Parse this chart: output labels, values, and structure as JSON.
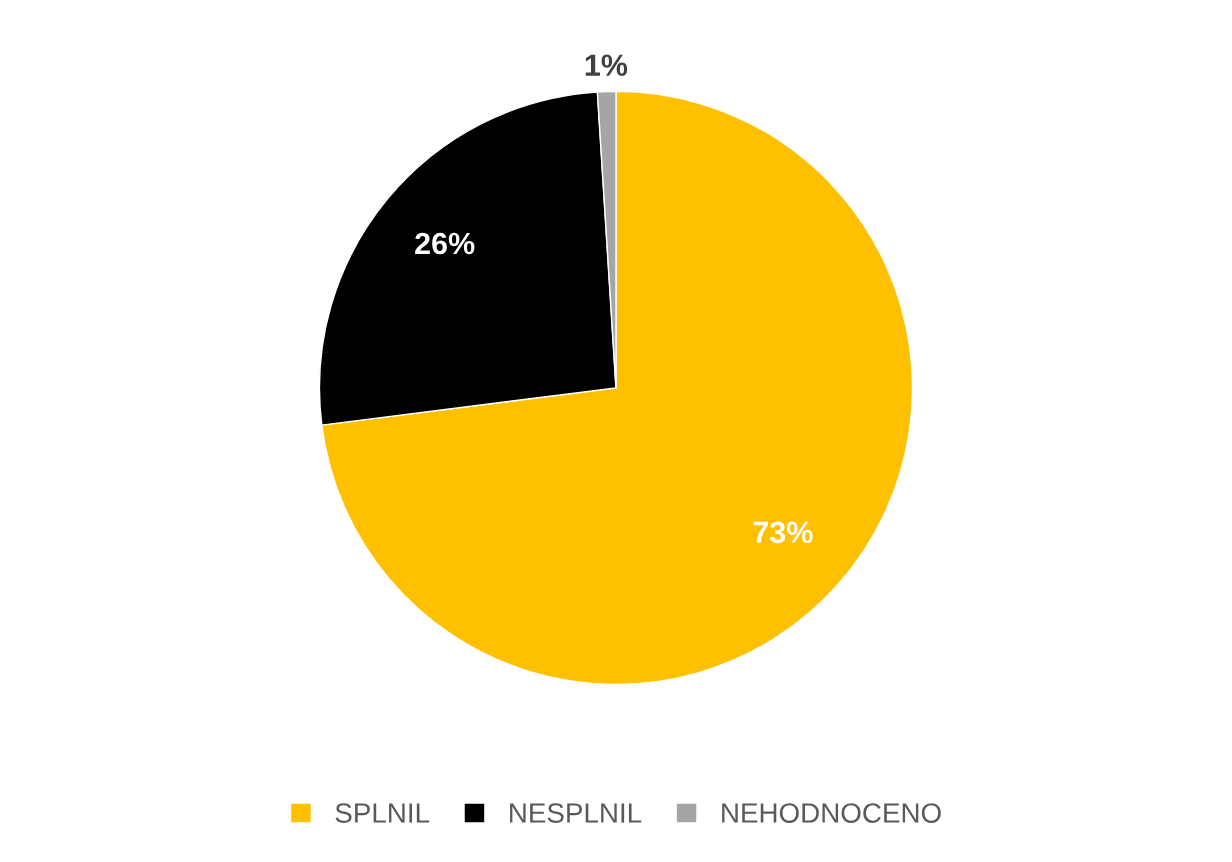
{
  "chart_data": {
    "type": "pie",
    "categories": [
      "SPLNIL",
      "NESPLNIL",
      "NEHODNOCENO"
    ],
    "values": [
      73,
      26,
      1
    ],
    "colors": [
      "#ffc000",
      "#000000",
      "#a5a5a5"
    ],
    "value_labels": [
      "73%",
      "26%",
      "1%"
    ],
    "legend": "bottom"
  }
}
